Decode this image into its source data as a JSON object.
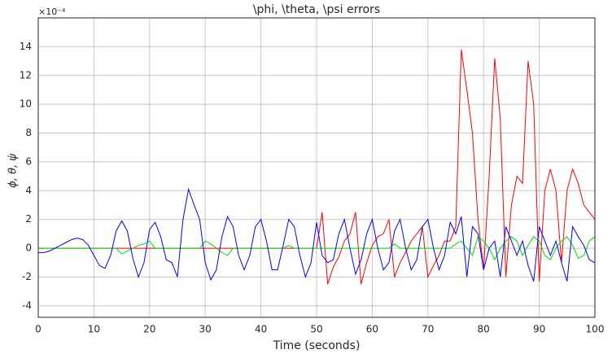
{
  "chart_data": {
    "type": "line",
    "title": "\\phi, \\theta, \\psi errors",
    "x_label": "Time (seconds)",
    "y_label": "ϕ, θ, ψ̇",
    "y_exponent": "×10⁻⁴",
    "xlim": [
      0,
      100
    ],
    "xticks": [
      0,
      10,
      20,
      30,
      40,
      50,
      60,
      70,
      80,
      90,
      100
    ],
    "ylim": [
      -4.8,
      16
    ],
    "yticks": [
      -4,
      -2,
      0,
      2,
      4,
      6,
      8,
      10,
      12,
      14
    ],
    "grid": true,
    "x": [
      0,
      1,
      2,
      3,
      4,
      5,
      6,
      7,
      8,
      9,
      10,
      11,
      12,
      13,
      14,
      15,
      16,
      17,
      18,
      19,
      20,
      21,
      22,
      23,
      24,
      25,
      26,
      27,
      28,
      29,
      30,
      31,
      32,
      33,
      34,
      35,
      36,
      37,
      38,
      39,
      40,
      41,
      42,
      43,
      44,
      45,
      46,
      47,
      48,
      49,
      50,
      51,
      52,
      53,
      54,
      55,
      56,
      57,
      58,
      59,
      60,
      61,
      62,
      63,
      64,
      65,
      66,
      67,
      68,
      69,
      70,
      71,
      72,
      73,
      74,
      75,
      76,
      77,
      78,
      79,
      80,
      81,
      82,
      83,
      84,
      85,
      86,
      87,
      88,
      89,
      90,
      91,
      92,
      93,
      94,
      95,
      96,
      97,
      98,
      99,
      100
    ],
    "series": [
      {
        "color": "#ff0000",
        "values": [
          0,
          0,
          0,
          0,
          0,
          0,
          0,
          0,
          0,
          0,
          0,
          0,
          0,
          0,
          0,
          0,
          0,
          0,
          0,
          0,
          0,
          0,
          0,
          0,
          0,
          0,
          0,
          0,
          0,
          0,
          0,
          0,
          0,
          0,
          0,
          0,
          0,
          0,
          0,
          0,
          0,
          0,
          0,
          0,
          0,
          0,
          0,
          0,
          0,
          0,
          0,
          2.5,
          -2.5,
          -1.3,
          -0.6,
          0.5,
          1.0,
          2.5,
          -2.5,
          -1.0,
          0.2,
          0.8,
          1.0,
          2.0,
          -2.0,
          -1.0,
          -0.3,
          0.5,
          1.0,
          1.5,
          -2.0,
          -1.2,
          -0.5,
          0.5,
          0.5,
          1.5,
          13.8,
          11.0,
          8.0,
          2.0,
          -1.5,
          5.0,
          13.2,
          9.0,
          -2.0,
          3.0,
          5.0,
          4.5,
          13.0,
          10.0,
          -2.3,
          4.0,
          5.5,
          4.0,
          -1.0,
          4.0,
          5.5,
          4.5,
          3.0,
          2.5,
          2.0
        ]
      },
      {
        "color": "#00dd00",
        "values": [
          0,
          0,
          0,
          0,
          0,
          0,
          0,
          0,
          0,
          0,
          0,
          0,
          0,
          0,
          0,
          -0.4,
          -0.2,
          0,
          0.2,
          0.3,
          0.5,
          0,
          0,
          0,
          0,
          0,
          0,
          0,
          0,
          0,
          0.5,
          0.3,
          0,
          -0.3,
          -0.5,
          0,
          0,
          0,
          0,
          0,
          0,
          0,
          0,
          0,
          0,
          0.2,
          0,
          0,
          0,
          0,
          0,
          0,
          0,
          0,
          0,
          0,
          0,
          0,
          0,
          0,
          0,
          0,
          0,
          0,
          0.3,
          0,
          0,
          0,
          0,
          0,
          0,
          0,
          0,
          0,
          0,
          0.3,
          0.5,
          0,
          -0.5,
          0.8,
          0.5,
          0,
          -0.8,
          0,
          0.5,
          0.8,
          0.5,
          -0.5,
          0.2,
          0.8,
          0.5,
          -0.5,
          -0.8,
          0,
          0.5,
          0.8,
          0.2,
          -0.7,
          -0.5,
          0.5,
          0.8
        ]
      },
      {
        "color": "#0000ff",
        "values": [
          -0.3,
          -0.3,
          -0.2,
          0,
          0.2,
          0.4,
          0.6,
          0.7,
          0.6,
          0.2,
          -0.5,
          -1.2,
          -1.4,
          -0.5,
          1.2,
          1.9,
          1.2,
          -0.7,
          -2.0,
          -1.0,
          1.3,
          1.8,
          0.8,
          -0.8,
          -1.0,
          -2.0,
          2.0,
          4.1,
          3.0,
          2.0,
          -1.0,
          -2.2,
          -1.5,
          0.8,
          2.2,
          1.5,
          -0.5,
          -1.5,
          -0.5,
          1.5,
          2.0,
          0.5,
          -1.5,
          -1.5,
          0.2,
          2.0,
          1.5,
          -0.5,
          -2.0,
          -1.0,
          1.8,
          -0.5,
          -1.0,
          -0.8,
          1.0,
          2.0,
          0,
          -1.8,
          -0.8,
          1.0,
          2.0,
          0,
          -1.5,
          -1.0,
          1.2,
          2.0,
          0,
          -1.5,
          -0.8,
          1.5,
          2.0,
          0,
          -1.5,
          -0.5,
          1.8,
          1.0,
          2.2,
          -2.0,
          1.5,
          1.0,
          -1.5,
          0,
          0.5,
          -2.0,
          1.5,
          0.5,
          -0.5,
          0.5,
          -1.2,
          -2.3,
          1.5,
          0.5,
          -0.5,
          0.5,
          -1.0,
          -2.3,
          1.5,
          0.8,
          0.2,
          -0.8,
          -1.0
        ]
      }
    ]
  }
}
